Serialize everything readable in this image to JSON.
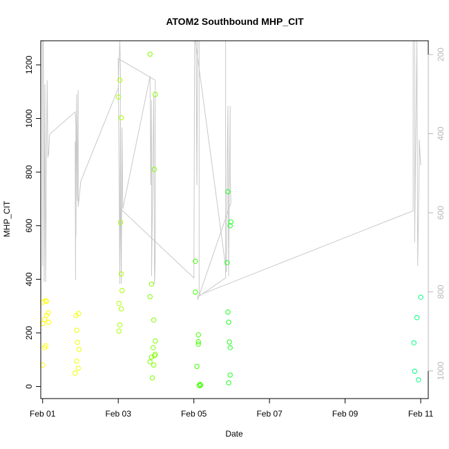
{
  "chart_data": {
    "type": "scatter",
    "title": "ATOM2 Southbound MHP_CIT",
    "xlabel": "Date",
    "ylabel": "MHP_CIT",
    "xlim": [
      -0.05,
      10.2
    ],
    "ylim": [
      -45,
      1290
    ],
    "y2lim": [
      1070,
      165
    ],
    "x_ticks": [
      0,
      2,
      4,
      6,
      8,
      10
    ],
    "x_tick_labels": [
      "Feb 01",
      "Feb 03",
      "Feb 05",
      "Feb 07",
      "Feb 09",
      "Feb 11"
    ],
    "y_ticks": [
      0,
      200,
      400,
      600,
      800,
      1000,
      1200
    ],
    "y_tick_labels": [
      "0",
      "200",
      "400",
      "600",
      "800",
      "1000",
      "1200"
    ],
    "y2_ticks": [
      200,
      400,
      600,
      800,
      1000
    ],
    "y2_tick_labels": [
      "200",
      "400",
      "600",
      "800",
      "1000"
    ],
    "grid": false,
    "colors": {
      "depth_line": "#c8c8c8",
      "right_axis": "#b8b8b8"
    },
    "points": [
      {
        "x": 0.0,
        "y": 315,
        "color": "#ffff00"
      },
      {
        "x": 0.08,
        "y": 320,
        "color": "#ffff00"
      },
      {
        "x": 0.1,
        "y": 318,
        "color": "#ffff00"
      },
      {
        "x": 0.15,
        "y": 275,
        "color": "#ffff00"
      },
      {
        "x": 0.1,
        "y": 265,
        "color": "#ffff00"
      },
      {
        "x": 0.05,
        "y": 250,
        "color": "#ffff00"
      },
      {
        "x": 0.0,
        "y": 235,
        "color": "#ffff00"
      },
      {
        "x": 0.16,
        "y": 240,
        "color": "#ffff00"
      },
      {
        "x": 0.08,
        "y": 152,
        "color": "#ffff00"
      },
      {
        "x": 0.05,
        "y": 145,
        "color": "#ffff00"
      },
      {
        "x": 0.0,
        "y": 80,
        "color": "#ffff00"
      },
      {
        "x": 0.88,
        "y": 265,
        "color": "#f0ff00"
      },
      {
        "x": 0.95,
        "y": 272,
        "color": "#f0ff00"
      },
      {
        "x": 0.9,
        "y": 210,
        "color": "#f0ff00"
      },
      {
        "x": 0.92,
        "y": 165,
        "color": "#f0ff00"
      },
      {
        "x": 0.96,
        "y": 138,
        "color": "#f0ff00"
      },
      {
        "x": 0.9,
        "y": 95,
        "color": "#f0ff00"
      },
      {
        "x": 0.94,
        "y": 68,
        "color": "#f0ff00"
      },
      {
        "x": 0.86,
        "y": 50,
        "color": "#f0ff00"
      },
      {
        "x": 2.04,
        "y": 1143,
        "color": "#a8ff00"
      },
      {
        "x": 2.0,
        "y": 1080,
        "color": "#a8ff00"
      },
      {
        "x": 2.08,
        "y": 1003,
        "color": "#a8ff00"
      },
      {
        "x": 2.06,
        "y": 612,
        "color": "#a8ff00"
      },
      {
        "x": 2.08,
        "y": 420,
        "color": "#a8ff00"
      },
      {
        "x": 2.1,
        "y": 358,
        "color": "#a8ff00"
      },
      {
        "x": 2.02,
        "y": 310,
        "color": "#a8ff00"
      },
      {
        "x": 2.08,
        "y": 290,
        "color": "#a8ff00"
      },
      {
        "x": 2.04,
        "y": 230,
        "color": "#a8ff00"
      },
      {
        "x": 2.02,
        "y": 207,
        "color": "#a8ff00"
      },
      {
        "x": 2.84,
        "y": 1240,
        "color": "#80ff00"
      },
      {
        "x": 2.98,
        "y": 1090,
        "color": "#80ff00"
      },
      {
        "x": 2.95,
        "y": 810,
        "color": "#80ff00"
      },
      {
        "x": 2.88,
        "y": 382,
        "color": "#80ff00"
      },
      {
        "x": 2.84,
        "y": 335,
        "color": "#80ff00"
      },
      {
        "x": 2.94,
        "y": 248,
        "color": "#80ff00"
      },
      {
        "x": 2.98,
        "y": 170,
        "color": "#80ff00"
      },
      {
        "x": 2.92,
        "y": 145,
        "color": "#80ff00"
      },
      {
        "x": 2.98,
        "y": 120,
        "color": "#80ff00"
      },
      {
        "x": 2.96,
        "y": 115,
        "color": "#80ff00"
      },
      {
        "x": 2.88,
        "y": 110,
        "color": "#80ff00"
      },
      {
        "x": 2.84,
        "y": 92,
        "color": "#80ff00"
      },
      {
        "x": 2.94,
        "y": 80,
        "color": "#80ff00"
      },
      {
        "x": 2.9,
        "y": 32,
        "color": "#80ff00"
      },
      {
        "x": 4.04,
        "y": 467,
        "color": "#40ff00"
      },
      {
        "x": 4.04,
        "y": 352,
        "color": "#40ff00"
      },
      {
        "x": 4.12,
        "y": 193,
        "color": "#40ff00"
      },
      {
        "x": 4.12,
        "y": 167,
        "color": "#40ff00"
      },
      {
        "x": 4.12,
        "y": 158,
        "color": "#40ff00"
      },
      {
        "x": 4.08,
        "y": 75,
        "color": "#40ff00"
      },
      {
        "x": 4.16,
        "y": 8,
        "color": "#40ff00"
      },
      {
        "x": 4.18,
        "y": 5,
        "color": "#40ff00"
      },
      {
        "x": 4.14,
        "y": 3,
        "color": "#40ff00"
      },
      {
        "x": 4.9,
        "y": 727,
        "color": "#20ff20"
      },
      {
        "x": 4.98,
        "y": 614,
        "color": "#20ff20"
      },
      {
        "x": 4.96,
        "y": 600,
        "color": "#20ff20"
      },
      {
        "x": 4.88,
        "y": 462,
        "color": "#20ff20"
      },
      {
        "x": 4.9,
        "y": 278,
        "color": "#20ff20"
      },
      {
        "x": 4.92,
        "y": 240,
        "color": "#20ff20"
      },
      {
        "x": 4.94,
        "y": 166,
        "color": "#20ff20"
      },
      {
        "x": 4.96,
        "y": 145,
        "color": "#20ff20"
      },
      {
        "x": 4.96,
        "y": 43,
        "color": "#20ff20"
      },
      {
        "x": 4.92,
        "y": 14,
        "color": "#20ff20"
      },
      {
        "x": 10.0,
        "y": 333,
        "color": "#00ff80"
      },
      {
        "x": 9.9,
        "y": 257,
        "color": "#00ff80"
      },
      {
        "x": 9.82,
        "y": 163,
        "color": "#00ff80"
      },
      {
        "x": 9.84,
        "y": 57,
        "color": "#00ff80"
      },
      {
        "x": 9.94,
        "y": 25,
        "color": "#00ff80"
      }
    ],
    "depth_line": [
      [
        0.0,
        735
      ],
      [
        0.0,
        165
      ],
      [
        0.02,
        165
      ],
      [
        0.04,
        775
      ],
      [
        0.06,
        275
      ],
      [
        0.08,
        775
      ],
      [
        0.1,
        470
      ],
      [
        0.12,
        265
      ],
      [
        0.14,
        460
      ],
      [
        0.16,
        450
      ],
      [
        0.18,
        405
      ],
      [
        0.2,
        400
      ],
      [
        0.86,
        345
      ],
      [
        0.88,
        380
      ],
      [
        0.87,
        770
      ],
      [
        0.86,
        420
      ],
      [
        0.88,
        660
      ],
      [
        0.9,
        300
      ],
      [
        0.92,
        570
      ],
      [
        0.94,
        290
      ],
      [
        0.94,
        585
      ],
      [
        1.01,
        520
      ],
      [
        2.0,
        285
      ],
      [
        2.04,
        165
      ],
      [
        2.06,
        230
      ],
      [
        2.04,
        780
      ],
      [
        2.06,
        370
      ],
      [
        2.08,
        780
      ],
      [
        2.1,
        385
      ],
      [
        2.12,
        590
      ],
      [
        2.84,
        255
      ],
      [
        2.86,
        530
      ],
      [
        2.88,
        315
      ],
      [
        2.88,
        760
      ],
      [
        2.94,
        305
      ],
      [
        2.96,
        780
      ],
      [
        2.98,
        710
      ],
      [
        2.98,
        265
      ],
      [
        2.0,
        210
      ],
      [
        2.04,
        770
      ],
      [
        2.06,
        590
      ],
      [
        4.0,
        765
      ],
      [
        4.02,
        165
      ],
      [
        4.06,
        165
      ],
      [
        4.08,
        530
      ],
      [
        4.1,
        165
      ],
      [
        4.14,
        165
      ],
      [
        4.14,
        810
      ],
      [
        4.15,
        810
      ],
      [
        4.84,
        765
      ],
      [
        4.84,
        165
      ],
      [
        4.04,
        165
      ],
      [
        4.86,
        750
      ],
      [
        4.88,
        510
      ],
      [
        4.9,
        330
      ],
      [
        4.92,
        760
      ],
      [
        4.94,
        530
      ],
      [
        4.96,
        330
      ],
      [
        4.96,
        510
      ],
      [
        4.98,
        575
      ],
      [
        4.1,
        820
      ],
      [
        4.1,
        810
      ],
      [
        9.8,
        595
      ],
      [
        9.8,
        165
      ],
      [
        9.84,
        165
      ],
      [
        9.84,
        675
      ],
      [
        9.86,
        480
      ],
      [
        9.9,
        165
      ],
      [
        9.92,
        735
      ],
      [
        9.96,
        475
      ],
      [
        9.96,
        415
      ],
      [
        10.0,
        480
      ]
    ]
  }
}
